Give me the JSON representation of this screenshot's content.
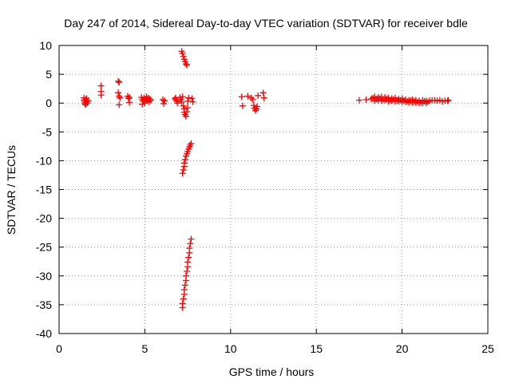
{
  "chart_data": {
    "type": "scatter",
    "title": "Day 247 of 2014, Sidereal Day-to-day VTEC variation (SDTVAR) for receiver bdle",
    "xlabel": "GPS time / hours",
    "ylabel": "SDTVAR / TECUs",
    "xlim": [
      0,
      25
    ],
    "ylim": [
      -40,
      10
    ],
    "xticks": [
      0,
      5,
      10,
      15,
      20,
      25
    ],
    "yticks": [
      10,
      5,
      0,
      -5,
      -10,
      -15,
      -20,
      -25,
      -30,
      -35,
      -40
    ],
    "grid": true,
    "marker": "+",
    "marker_color": "#ff0000",
    "series": [
      {
        "name": "SDTVAR",
        "points": [
          [
            1.45,
            0.9
          ],
          [
            1.45,
            0.5
          ],
          [
            1.5,
            0.2
          ],
          [
            1.5,
            -0.1
          ],
          [
            1.55,
            0.6
          ],
          [
            1.55,
            -0.3
          ],
          [
            1.6,
            0.8
          ],
          [
            1.6,
            0.3
          ],
          [
            1.65,
            0.0
          ],
          [
            1.7,
            0.4
          ],
          [
            2.45,
            3.0
          ],
          [
            2.45,
            2.0
          ],
          [
            2.45,
            1.4
          ],
          [
            3.45,
            3.8
          ],
          [
            3.5,
            3.6
          ],
          [
            3.45,
            1.8
          ],
          [
            3.5,
            1.2
          ],
          [
            3.5,
            -0.3
          ],
          [
            3.55,
            0.9
          ],
          [
            4.0,
            1.2
          ],
          [
            4.05,
            0.8
          ],
          [
            4.1,
            0.1
          ],
          [
            4.1,
            1.0
          ],
          [
            4.8,
            1.0
          ],
          [
            4.85,
            0.6
          ],
          [
            4.85,
            -0.2
          ],
          [
            4.9,
            0.3
          ],
          [
            4.95,
            0.9
          ],
          [
            5.0,
            0.0
          ],
          [
            5.05,
            0.7
          ],
          [
            5.1,
            1.1
          ],
          [
            5.15,
            0.4
          ],
          [
            5.2,
            0.9
          ],
          [
            5.25,
            0.2
          ],
          [
            5.3,
            0.7
          ],
          [
            5.35,
            0.5
          ],
          [
            6.05,
            0.6
          ],
          [
            6.1,
            -0.1
          ],
          [
            6.15,
            0.4
          ],
          [
            6.75,
            0.7
          ],
          [
            6.8,
            0.9
          ],
          [
            6.85,
            0.4
          ],
          [
            6.9,
            0.0
          ],
          [
            7.05,
            1.0
          ],
          [
            7.1,
            0.6
          ],
          [
            7.15,
            0.2
          ],
          [
            7.2,
            1.1
          ],
          [
            7.25,
            -0.5
          ],
          [
            7.3,
            -1.0
          ],
          [
            7.3,
            -1.6
          ],
          [
            7.35,
            -2.0
          ],
          [
            7.4,
            -2.3
          ],
          [
            7.45,
            -1.5
          ],
          [
            7.5,
            -0.8
          ],
          [
            7.5,
            0.3
          ],
          [
            7.55,
            0.9
          ],
          [
            7.15,
            9.0
          ],
          [
            7.2,
            8.6
          ],
          [
            7.25,
            8.1
          ],
          [
            7.3,
            7.6
          ],
          [
            7.35,
            7.2
          ],
          [
            7.4,
            6.8
          ],
          [
            7.45,
            6.6
          ],
          [
            7.75,
            0.8
          ],
          [
            7.8,
            0.2
          ],
          [
            7.2,
            -12.2
          ],
          [
            7.25,
            -11.6
          ],
          [
            7.3,
            -11.0
          ],
          [
            7.3,
            -10.4
          ],
          [
            7.35,
            -9.8
          ],
          [
            7.4,
            -9.2
          ],
          [
            7.45,
            -8.8
          ],
          [
            7.5,
            -8.4
          ],
          [
            7.55,
            -8.0
          ],
          [
            7.6,
            -7.6
          ],
          [
            7.65,
            -7.3
          ],
          [
            7.7,
            -7.0
          ],
          [
            7.2,
            -35.5
          ],
          [
            7.2,
            -34.8
          ],
          [
            7.25,
            -34.0
          ],
          [
            7.3,
            -33.2
          ],
          [
            7.3,
            -32.4
          ],
          [
            7.35,
            -31.6
          ],
          [
            7.4,
            -30.8
          ],
          [
            7.4,
            -30.0
          ],
          [
            7.45,
            -29.2
          ],
          [
            7.5,
            -28.4
          ],
          [
            7.5,
            -27.6
          ],
          [
            7.55,
            -26.8
          ],
          [
            7.6,
            -26.0
          ],
          [
            7.6,
            -25.2
          ],
          [
            7.65,
            -24.4
          ],
          [
            7.7,
            -23.6
          ],
          [
            10.65,
            1.1
          ],
          [
            10.7,
            -0.5
          ],
          [
            11.0,
            1.2
          ],
          [
            11.2,
            0.9
          ],
          [
            11.3,
            0.6
          ],
          [
            11.35,
            -0.4
          ],
          [
            11.4,
            -0.9
          ],
          [
            11.45,
            -1.3
          ],
          [
            11.5,
            -1.0
          ],
          [
            11.55,
            -0.6
          ],
          [
            11.6,
            1.3
          ],
          [
            11.9,
            1.8
          ],
          [
            11.95,
            0.9
          ],
          [
            17.5,
            0.5
          ],
          [
            17.9,
            0.6
          ],
          [
            18.2,
            0.7
          ],
          [
            18.3,
            0.9
          ],
          [
            18.4,
            1.1
          ],
          [
            18.5,
            0.7
          ],
          [
            18.6,
            1.0
          ],
          [
            18.7,
            0.8
          ],
          [
            18.8,
            1.1
          ],
          [
            18.9,
            0.6
          ],
          [
            19.0,
            1.0
          ],
          [
            19.1,
            0.7
          ],
          [
            19.2,
            0.9
          ],
          [
            19.3,
            0.5
          ],
          [
            19.4,
            0.8
          ],
          [
            19.5,
            0.6
          ],
          [
            19.6,
            0.9
          ],
          [
            19.7,
            0.4
          ],
          [
            19.8,
            0.7
          ],
          [
            19.9,
            0.5
          ],
          [
            20.0,
            0.8
          ],
          [
            20.1,
            0.4
          ],
          [
            20.2,
            0.6
          ],
          [
            20.3,
            0.3
          ],
          [
            20.4,
            0.5
          ],
          [
            20.5,
            0.4
          ],
          [
            20.6,
            0.6
          ],
          [
            20.7,
            0.3
          ],
          [
            20.8,
            0.5
          ],
          [
            20.9,
            0.2
          ],
          [
            21.0,
            0.4
          ],
          [
            21.1,
            0.1
          ],
          [
            21.2,
            0.5
          ],
          [
            21.3,
            0.3
          ],
          [
            21.4,
            0.4
          ],
          [
            21.5,
            0.2
          ],
          [
            18.4,
            0.4
          ],
          [
            18.6,
            0.5
          ],
          [
            18.8,
            0.4
          ],
          [
            19.0,
            0.5
          ],
          [
            19.2,
            0.3
          ],
          [
            19.4,
            0.4
          ],
          [
            19.6,
            0.3
          ],
          [
            19.8,
            0.3
          ],
          [
            20.0,
            0.2
          ],
          [
            20.2,
            0.2
          ],
          [
            20.4,
            0.1
          ],
          [
            20.6,
            0.1
          ],
          [
            20.8,
            0.1
          ],
          [
            21.0,
            0.0
          ],
          [
            21.2,
            0.0
          ],
          [
            21.4,
            0.0
          ],
          [
            21.6,
            0.4
          ],
          [
            21.75,
            0.5
          ],
          [
            21.9,
            0.5
          ],
          [
            22.05,
            0.4
          ],
          [
            22.2,
            0.5
          ],
          [
            22.35,
            0.3
          ],
          [
            22.5,
            0.4
          ],
          [
            22.65,
            0.4
          ],
          [
            22.7,
            0.5
          ]
        ]
      }
    ]
  }
}
